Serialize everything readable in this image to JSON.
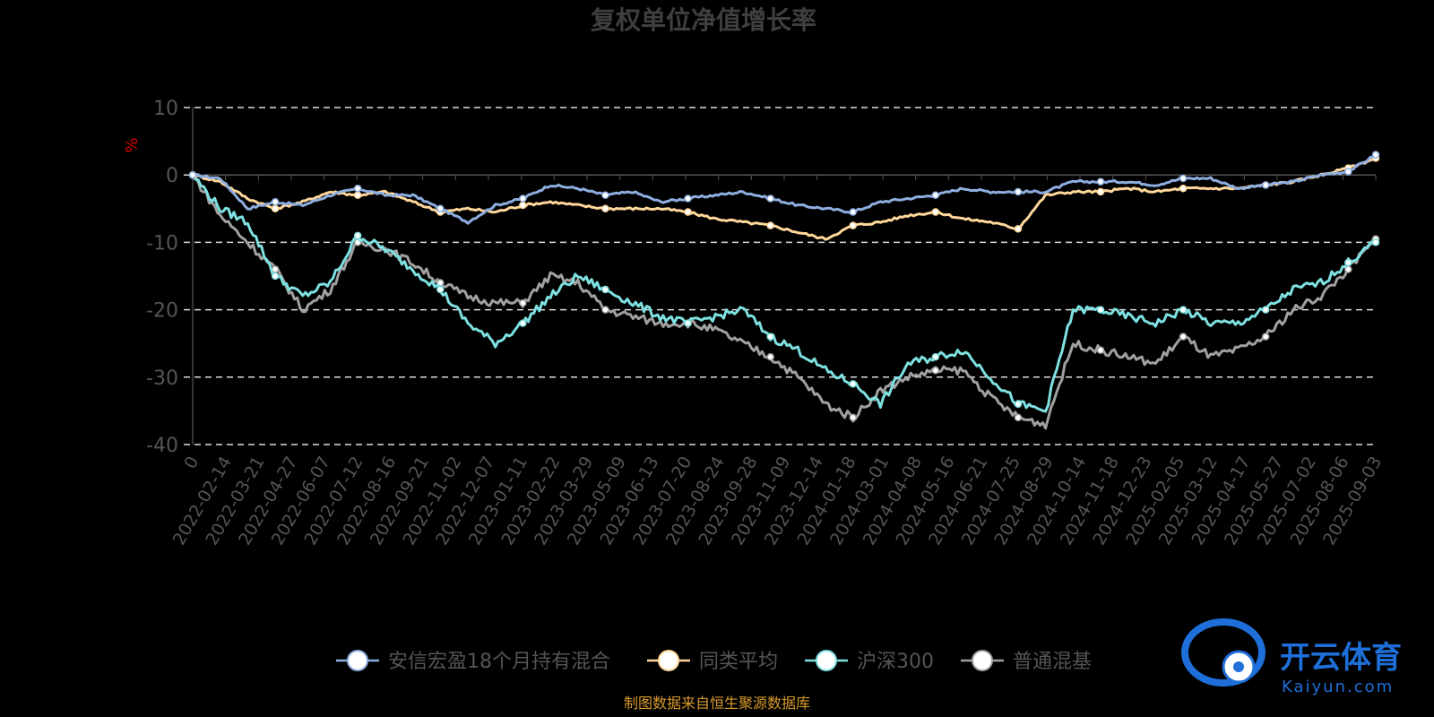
{
  "chart_data": {
    "type": "line",
    "title": "复权单位净值增长率",
    "ylabel": "%",
    "ylim": [
      -40,
      10
    ],
    "yticks": [
      10,
      0,
      -10,
      -20,
      -30,
      -40
    ],
    "grid": true,
    "legend_position": "bottom",
    "xticks": [
      "0",
      "2022-02-14",
      "2022-03-21",
      "2022-04-27",
      "2022-06-07",
      "2022-07-12",
      "2022-08-16",
      "2022-09-21",
      "2022-11-02",
      "2022-12-07",
      "2023-01-11",
      "2023-02-22",
      "2023-03-29",
      "2023-05-09",
      "2023-06-13",
      "2023-07-20",
      "2023-08-24",
      "2023-09-28",
      "2023-11-09",
      "2023-12-14",
      "2024-01-18",
      "2024-03-01",
      "2024-04-08",
      "2024-05-16",
      "2024-06-21",
      "2024-07-25",
      "2024-08-29",
      "2024-10-14",
      "2024-11-18",
      "2024-12-23",
      "2025-02-05",
      "2025-03-12",
      "2025-04-17",
      "2025-05-27",
      "2025-07-02",
      "2025-08-06",
      "2025-09-03"
    ],
    "series": [
      {
        "name": "安信宏盈18个月持有混合",
        "color": "#8eaee0",
        "values": [
          0,
          -0.5,
          -5,
          -4,
          -4.5,
          -3,
          -2,
          -3,
          -3,
          -5,
          -7,
          -4.5,
          -3.5,
          -1.5,
          -2,
          -3,
          -2.5,
          -4,
          -3.5,
          -3,
          -2.5,
          -3.5,
          -4.5,
          -5,
          -5.5,
          -4,
          -3.5,
          -3,
          -2,
          -2.5,
          -2.5,
          -2.5,
          -1,
          -1,
          -1,
          -1.5,
          -0.5,
          -0.5,
          -2,
          -1.5,
          -1,
          0,
          0.5,
          3
        ]
      },
      {
        "name": "同类平均",
        "color": "#ffd79a",
        "values": [
          0,
          -1,
          -3.5,
          -5,
          -4,
          -2.5,
          -3,
          -2.5,
          -4,
          -5.5,
          -5,
          -5.5,
          -4.5,
          -4,
          -4.5,
          -5,
          -5,
          -5,
          -5.5,
          -6.5,
          -7,
          -7.5,
          -8.5,
          -9.5,
          -7.5,
          -7,
          -6,
          -5.5,
          -6.5,
          -7,
          -8,
          -3,
          -2.5,
          -2.5,
          -2,
          -2.5,
          -2,
          -2,
          -2,
          -1.5,
          -1,
          0,
          1,
          2.5
        ]
      },
      {
        "name": "沪深300",
        "color": "#7ee0e0",
        "values": [
          0,
          -5,
          -7,
          -15,
          -18,
          -16,
          -9,
          -11,
          -14,
          -17,
          -22,
          -25,
          -22,
          -18,
          -15,
          -17,
          -19,
          -21,
          -22,
          -21,
          -20,
          -24,
          -26,
          -29,
          -31,
          -34,
          -28,
          -27,
          -26,
          -30,
          -34,
          -35,
          -20,
          -20,
          -21,
          -22,
          -20,
          -22,
          -22,
          -20,
          -17,
          -16,
          -13,
          -10
        ]
      },
      {
        "name": "普通混基",
        "color": "#a0a0a0",
        "values": [
          0,
          -6,
          -10,
          -14,
          -20,
          -17,
          -10,
          -11,
          -13,
          -16,
          -18,
          -19,
          -19,
          -15,
          -16,
          -20,
          -21,
          -22,
          -22,
          -23,
          -25,
          -27,
          -30,
          -34,
          -36,
          -32,
          -30,
          -29,
          -29,
          -33,
          -36,
          -37,
          -25,
          -26,
          -27,
          -28,
          -24,
          -27,
          -26,
          -24,
          -20,
          -18,
          -14,
          -9.5
        ]
      }
    ]
  },
  "footer": {
    "source": "制图数据来自恒生聚源数据库",
    "watermark_cn": "开云体育",
    "watermark_en": "Kaiyun.com"
  }
}
